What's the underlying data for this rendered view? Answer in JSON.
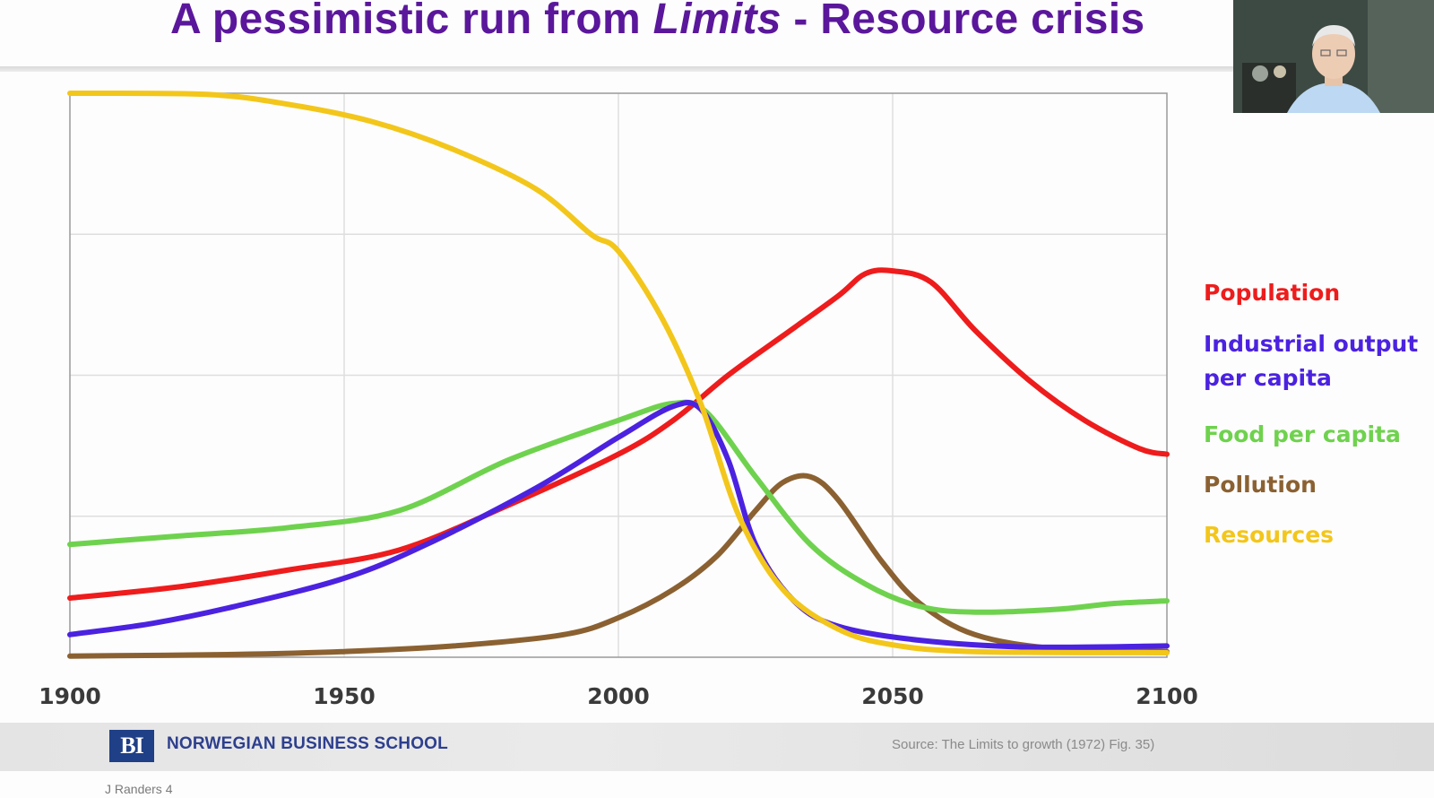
{
  "speaker_name": "",
  "slide": {
    "title_pre": "A pessimistic run from ",
    "title_em": "Limits",
    "title_post": "  -  Resource crisis"
  },
  "footer": {
    "logo_text": "BI",
    "school": "NORWEGIAN BUSINESS SCHOOL",
    "source": "Source: The Limits to growth (1972) Fig. 35)",
    "slide_label": "J Randers 4"
  },
  "webcam": {
    "icon": "person-video-icon"
  },
  "chart_data": {
    "type": "line",
    "title": "",
    "xlabel": "",
    "ylabel": "",
    "xlim": [
      1900,
      2100
    ],
    "ylim": [
      0,
      1
    ],
    "x_ticks": [
      "1900",
      "1950",
      "2000",
      "2050",
      "2100"
    ],
    "grid": true,
    "legend_position": "right",
    "series": [
      {
        "name": "Population",
        "color": "#ee1c1c",
        "points": [
          [
            1900,
            0.105
          ],
          [
            1920,
            0.125
          ],
          [
            1940,
            0.155
          ],
          [
            1960,
            0.19
          ],
          [
            1980,
            0.27
          ],
          [
            2000,
            0.36
          ],
          [
            2010,
            0.42
          ],
          [
            2020,
            0.5
          ],
          [
            2030,
            0.57
          ],
          [
            2040,
            0.64
          ],
          [
            2045,
            0.68
          ],
          [
            2050,
            0.685
          ],
          [
            2057,
            0.665
          ],
          [
            2065,
            0.58
          ],
          [
            2075,
            0.49
          ],
          [
            2085,
            0.42
          ],
          [
            2095,
            0.37
          ],
          [
            2100,
            0.36
          ]
        ]
      },
      {
        "name": "Industrial output per capita",
        "color": "#4b22e0",
        "points": [
          [
            1900,
            0.04
          ],
          [
            1915,
            0.06
          ],
          [
            1930,
            0.09
          ],
          [
            1950,
            0.14
          ],
          [
            1965,
            0.2
          ],
          [
            1985,
            0.3
          ],
          [
            2000,
            0.39
          ],
          [
            2010,
            0.445
          ],
          [
            2015,
            0.44
          ],
          [
            2020,
            0.35
          ],
          [
            2025,
            0.2
          ],
          [
            2032,
            0.1
          ],
          [
            2040,
            0.055
          ],
          [
            2055,
            0.03
          ],
          [
            2075,
            0.018
          ],
          [
            2100,
            0.02
          ]
        ]
      },
      {
        "name": "Food per capita",
        "color": "#6fd24e",
        "points": [
          [
            1900,
            0.2
          ],
          [
            1920,
            0.215
          ],
          [
            1940,
            0.23
          ],
          [
            1960,
            0.26
          ],
          [
            1980,
            0.35
          ],
          [
            2000,
            0.42
          ],
          [
            2010,
            0.45
          ],
          [
            2016,
            0.435
          ],
          [
            2025,
            0.32
          ],
          [
            2035,
            0.2
          ],
          [
            2045,
            0.13
          ],
          [
            2055,
            0.09
          ],
          [
            2065,
            0.08
          ],
          [
            2080,
            0.085
          ],
          [
            2090,
            0.095
          ],
          [
            2100,
            0.1
          ]
        ]
      },
      {
        "name": "Pollution",
        "color": "#8b6132",
        "points": [
          [
            1900,
            0.002
          ],
          [
            1930,
            0.005
          ],
          [
            1950,
            0.01
          ],
          [
            1970,
            0.02
          ],
          [
            1990,
            0.04
          ],
          [
            2000,
            0.07
          ],
          [
            2010,
            0.12
          ],
          [
            2018,
            0.18
          ],
          [
            2025,
            0.26
          ],
          [
            2030,
            0.31
          ],
          [
            2035,
            0.32
          ],
          [
            2040,
            0.28
          ],
          [
            2048,
            0.17
          ],
          [
            2055,
            0.095
          ],
          [
            2065,
            0.04
          ],
          [
            2080,
            0.015
          ],
          [
            2100,
            0.01
          ]
        ]
      },
      {
        "name": "Resources",
        "color": "#f3c61b",
        "points": [
          [
            1900,
            1.0
          ],
          [
            1925,
            0.998
          ],
          [
            1940,
            0.98
          ],
          [
            1955,
            0.95
          ],
          [
            1970,
            0.9
          ],
          [
            1985,
            0.83
          ],
          [
            1995,
            0.75
          ],
          [
            2000,
            0.72
          ],
          [
            2008,
            0.6
          ],
          [
            2015,
            0.45
          ],
          [
            2022,
            0.25
          ],
          [
            2030,
            0.12
          ],
          [
            2040,
            0.05
          ],
          [
            2050,
            0.022
          ],
          [
            2065,
            0.01
          ],
          [
            2100,
            0.008
          ]
        ]
      }
    ]
  },
  "legend": [
    {
      "line1": "Population",
      "line2": "",
      "color": "#ee1c1c"
    },
    {
      "line1": "Industrial output",
      "line2": "per capita",
      "color": "#4b22e0"
    },
    {
      "line1": "Food per capita",
      "line2": "",
      "color": "#6fd24e"
    },
    {
      "line1": "Pollution",
      "line2": "",
      "color": "#8b6132"
    },
    {
      "line1": "Resources",
      "line2": "",
      "color": "#f3c61b"
    }
  ]
}
